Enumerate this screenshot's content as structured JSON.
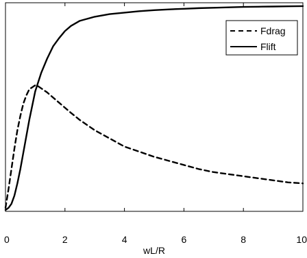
{
  "chart_data": {
    "type": "line",
    "xlabel": "wL/R",
    "ylabel": "",
    "title": "",
    "xlim": [
      0,
      10
    ],
    "ylim": [
      0,
      1
    ],
    "x_ticks": [
      0,
      2,
      4,
      6,
      8,
      10
    ],
    "x_tick_labels": [
      "0",
      "2",
      "4",
      "6",
      "8",
      "10"
    ],
    "grid": false,
    "legend_position": "top-right",
    "series": [
      {
        "name": "Fdrag",
        "style": "dashed",
        "color": "#000000",
        "x": [
          0.0,
          0.1,
          0.2,
          0.3,
          0.4,
          0.5,
          0.6,
          0.7,
          0.8,
          0.9,
          1.0,
          1.1,
          1.2,
          1.4,
          1.6,
          1.8,
          2.0,
          2.2,
          2.5,
          3.0,
          3.5,
          4.0,
          4.5,
          5.0,
          5.5,
          6.0,
          6.5,
          7.0,
          7.5,
          8.0,
          8.5,
          9.0,
          9.5,
          10.0
        ],
        "values": [
          0.01,
          0.1,
          0.2,
          0.3,
          0.39,
          0.46,
          0.52,
          0.56,
          0.59,
          0.6,
          0.61,
          0.605,
          0.595,
          0.575,
          0.55,
          0.525,
          0.5,
          0.475,
          0.44,
          0.39,
          0.35,
          0.31,
          0.285,
          0.26,
          0.24,
          0.22,
          0.2,
          0.185,
          0.175,
          0.165,
          0.155,
          0.145,
          0.135,
          0.13
        ]
      },
      {
        "name": "Flift",
        "style": "solid",
        "color": "#000000",
        "x": [
          0.0,
          0.1,
          0.2,
          0.3,
          0.4,
          0.5,
          0.6,
          0.7,
          0.8,
          0.9,
          1.0,
          1.2,
          1.4,
          1.6,
          1.8,
          2.0,
          2.2,
          2.5,
          3.0,
          3.5,
          4.0,
          4.5,
          5.0,
          5.5,
          6.0,
          6.5,
          7.0,
          7.5,
          8.0,
          8.5,
          9.0,
          9.5,
          10.0
        ],
        "values": [
          0.0,
          0.01,
          0.03,
          0.07,
          0.13,
          0.2,
          0.28,
          0.36,
          0.44,
          0.51,
          0.58,
          0.67,
          0.74,
          0.8,
          0.84,
          0.875,
          0.9,
          0.925,
          0.945,
          0.958,
          0.965,
          0.972,
          0.977,
          0.981,
          0.984,
          0.987,
          0.989,
          0.991,
          0.993,
          0.994,
          0.995,
          0.996,
          0.997
        ]
      }
    ]
  }
}
